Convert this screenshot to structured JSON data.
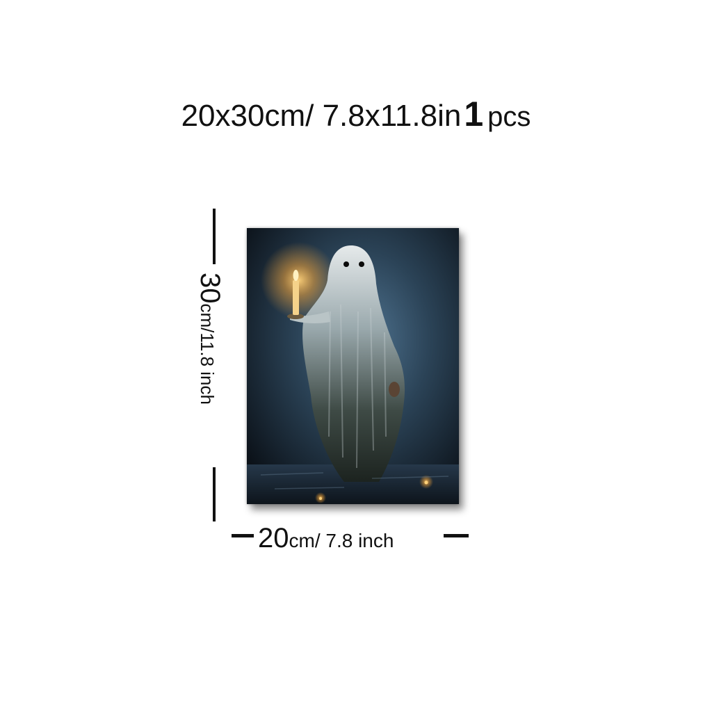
{
  "title": {
    "size": "20x30cm/ 7.8x11.8in",
    "quantity": "1",
    "quantity_unit": "pcs"
  },
  "height_label": {
    "value": "30",
    "unit": "cm/11.8 inch"
  },
  "width_label": {
    "value": "20",
    "unit": "cm/ 7.8 inch"
  },
  "artwork": {
    "subject": "ghost-holding-candle-painting",
    "colors": {
      "background_dark": "#0e1620",
      "blue_mist": "#3f5f78",
      "ghost_white": "#d9dee0",
      "candle_glow": "#f2a43a"
    }
  }
}
